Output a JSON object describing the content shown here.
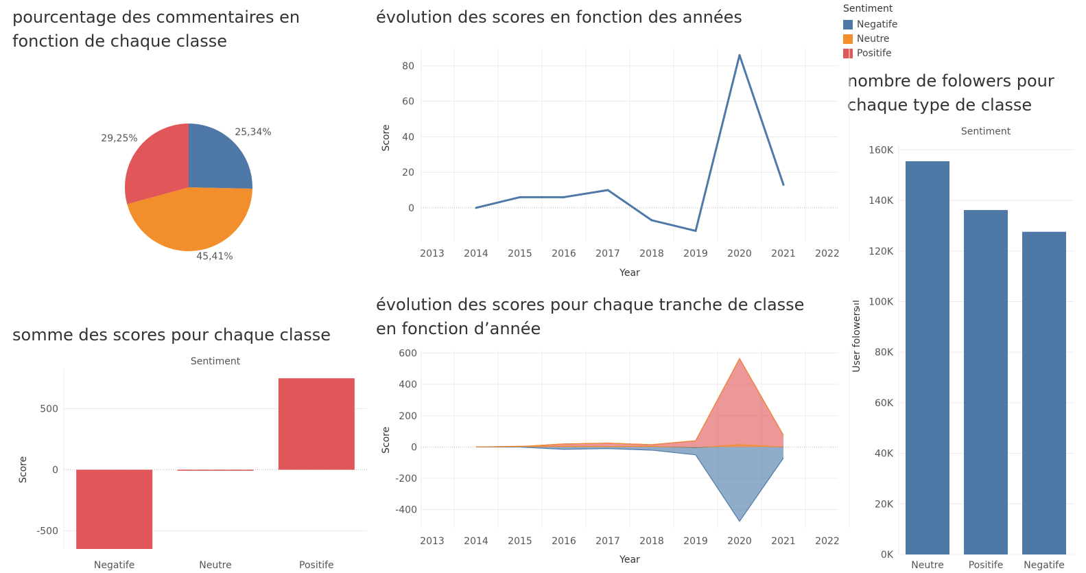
{
  "titles": {
    "pie": "pourcentage des commentaires en fonction de chaque classe",
    "line": "évolution des scores en fonction des années",
    "bar_scores": "somme des scores pour chaque classe",
    "area": "évolution des scores pour chaque tranche de classe en fonction d’année",
    "bar_followers": "nombre de folowers pour chaque type de classe"
  },
  "legend": {
    "title": "Sentiment",
    "items": [
      {
        "label": "Negatife",
        "color": "#4e79a7"
      },
      {
        "label": "Neutre",
        "color": "#f28e2b"
      },
      {
        "label": "Positife",
        "color": "#e15759"
      }
    ]
  },
  "chart_data": [
    {
      "id": "pie",
      "type": "pie",
      "slices": [
        {
          "label": "25,34%",
          "value": 25.34,
          "color": "#4e79a7"
        },
        {
          "label": "45,41%",
          "value": 45.41,
          "color": "#f28e2b"
        },
        {
          "label": "29,25%",
          "value": 29.25,
          "color": "#e15759"
        }
      ]
    },
    {
      "id": "line",
      "type": "line",
      "xlabel": "Year",
      "ylabel": "Score",
      "x_ticks": [
        "2013",
        "2014",
        "2015",
        "2016",
        "2017",
        "2018",
        "2019",
        "2020",
        "2021",
        "2022"
      ],
      "y_ticks": [
        0,
        20,
        40,
        60,
        80
      ],
      "ylim": [
        -19,
        90
      ],
      "color": "#4e79a7",
      "x": [
        2014,
        2015,
        2016,
        2017,
        2018,
        2019,
        2020,
        2021
      ],
      "values": [
        0,
        6,
        6,
        10,
        -7,
        -13,
        86,
        13
      ]
    },
    {
      "id": "bar_scores",
      "type": "bar",
      "header": "Sentiment",
      "ylabel": "Score",
      "categories": [
        "Negatife",
        "Neutre",
        "Positife"
      ],
      "values": [
        -650,
        0,
        750
      ],
      "y_ticks": [
        500,
        0,
        -500
      ],
      "ylim": [
        -650,
        830
      ],
      "color": "#e15759"
    },
    {
      "id": "area",
      "type": "area",
      "xlabel": "Year",
      "ylabel": "Score",
      "x_ticks": [
        "2013",
        "2014",
        "2015",
        "2016",
        "2017",
        "2018",
        "2019",
        "2020",
        "2021",
        "2022"
      ],
      "y_ticks": [
        600,
        400,
        200,
        0,
        -200,
        -400
      ],
      "ylim": [
        -520,
        620
      ],
      "x": [
        2014,
        2015,
        2016,
        2017,
        2018,
        2019,
        2020,
        2021
      ],
      "series": [
        {
          "values": [
            0,
            3,
            20,
            25,
            15,
            40,
            565,
            75
          ],
          "color": "#e15759"
        },
        {
          "values": [
            0,
            5,
            5,
            3,
            5,
            -5,
            15,
            0
          ],
          "color": "#f28e2b"
        },
        {
          "values": [
            0,
            0,
            -15,
            -10,
            -20,
            -50,
            -475,
            -70
          ],
          "color": "#4e79a7"
        }
      ]
    },
    {
      "id": "bar_followers",
      "type": "bar",
      "header": "Sentiment",
      "ylabel": "User folowers",
      "categories": [
        "Neutre",
        "Positife",
        "Negatife"
      ],
      "values": [
        155500,
        136200,
        127600
      ],
      "y_ticks": [
        "0K",
        "20K",
        "40K",
        "60K",
        "80K",
        "100K",
        "120K",
        "140K",
        "160K"
      ],
      "ylim": [
        0,
        162000
      ],
      "color": "#4e79a7"
    }
  ]
}
